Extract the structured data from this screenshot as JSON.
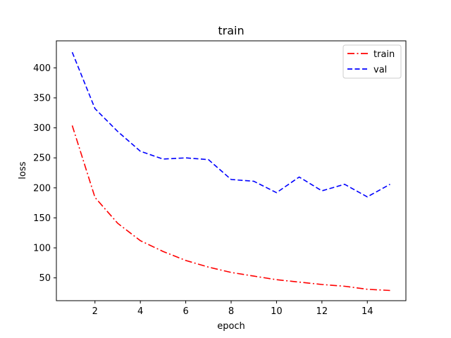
{
  "chart_data": {
    "type": "line",
    "title": "train",
    "xlabel": "epoch",
    "ylabel": "loss",
    "x": [
      1,
      2,
      3,
      4,
      5,
      6,
      7,
      8,
      9,
      10,
      11,
      12,
      13,
      14,
      15
    ],
    "xlim": [
      0.3,
      15.7
    ],
    "ylim": [
      12,
      445
    ],
    "xticks": [
      2,
      4,
      6,
      8,
      10,
      12,
      14
    ],
    "yticks": [
      50,
      100,
      150,
      200,
      250,
      300,
      350,
      400
    ],
    "grid": false,
    "legend_position": "top-right",
    "series": [
      {
        "name": "train",
        "color": "#ff0000",
        "line_style": "dash-dot",
        "values": [
          304,
          184,
          141,
          112,
          94,
          79,
          68,
          59,
          53,
          47,
          43,
          39,
          36,
          31,
          29
        ]
      },
      {
        "name": "val",
        "color": "#0000ff",
        "line_style": "dashed",
        "values": [
          426,
          332,
          294,
          261,
          248,
          250,
          247,
          214,
          211,
          192,
          218,
          195,
          206,
          185,
          206
        ]
      }
    ]
  }
}
